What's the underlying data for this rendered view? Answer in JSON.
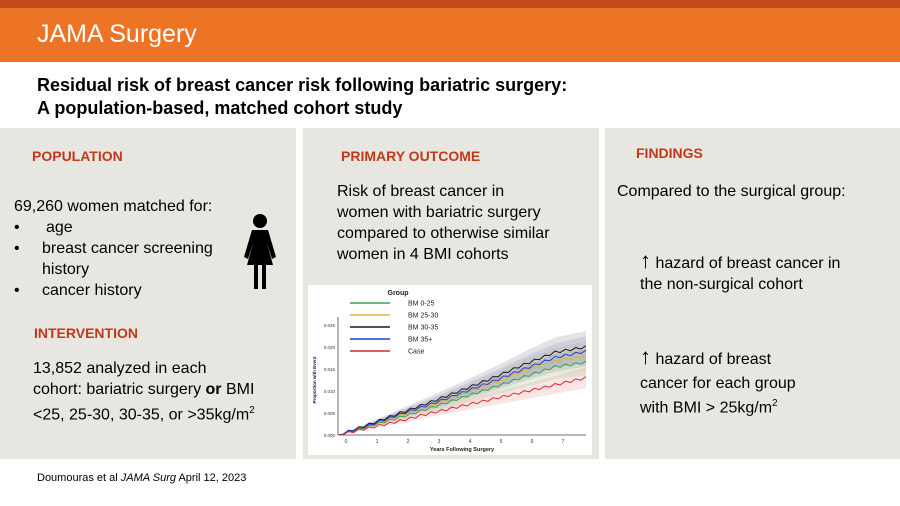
{
  "banner": {
    "journal": "JAMA Surgery"
  },
  "title": {
    "line1": "Residual risk of breast cancer risk following bariatric surgery:",
    "line2": "A population-based, matched cohort study"
  },
  "population": {
    "heading": "POPULATION",
    "intro": "69,260 women matched for:",
    "bullet_char": "•",
    "bullets": [
      "age",
      "breast cancer screening",
      "history",
      "cancer history"
    ]
  },
  "intervention": {
    "heading": "INTERVENTION",
    "line1": "13,852 analyzed in each",
    "line2_pre": "cohort: bariatric surgery ",
    "line2_bold": "or",
    "line2_post": " BMI",
    "line3": "<25, 25-30, 30-35, or >35kg/m",
    "line3_sup": "2"
  },
  "primary_outcome": {
    "heading": "PRIMARY OUTCOME",
    "lines": [
      "Risk of breast cancer in",
      "women with bariatric surgery",
      "compared to otherwise similar",
      "women in 4 BMI cohorts"
    ]
  },
  "findings": {
    "heading": "FINDINGS",
    "intro": "Compared to the surgical group:",
    "arrow": "↑",
    "f1_line1": " hazard of breast cancer in",
    "f1_line2": "the non-surgical cohort",
    "f2_line1": " hazard of breast",
    "f2_line2": "cancer for each group",
    "f2_line3": "with BMI > 25kg/m",
    "f2_sup": "2"
  },
  "citation": {
    "pre": "Doumouras et al ",
    "journal": "JAMA Surg",
    "post": " April 12, 2023"
  },
  "chart_data": {
    "type": "line",
    "title": "",
    "xlabel": "Years Following Surgery",
    "ylabel": "Proportion with Event",
    "legend_title": "Group",
    "legend_position": "top-left",
    "x": [
      0,
      1,
      2,
      3,
      4,
      5,
      6,
      7,
      8
    ],
    "xlim": [
      0,
      8
    ],
    "ylim": [
      0,
      0.025
    ],
    "yticks": [
      "0.000",
      "0.005",
      "0.010",
      "0.015",
      "0.020",
      "0.025"
    ],
    "xticks": [
      "0",
      "1",
      "2",
      "3",
      "4",
      "5",
      "6",
      "7",
      "8"
    ],
    "series": [
      {
        "name": "BM 0-25",
        "color": "#3aa34a",
        "values": [
          0,
          0.002,
          0.004,
          0.0062,
          0.0085,
          0.0108,
          0.0132,
          0.0155,
          0.0165
        ]
      },
      {
        "name": "BM 25-30",
        "color": "#e0b040",
        "values": [
          0,
          0.0022,
          0.0045,
          0.0068,
          0.0092,
          0.0118,
          0.0145,
          0.0168,
          0.018
        ]
      },
      {
        "name": "BM 30-35",
        "color": "#1a1a1a",
        "values": [
          0,
          0.0024,
          0.005,
          0.0075,
          0.0102,
          0.013,
          0.016,
          0.0188,
          0.02
        ]
      },
      {
        "name": "BM 35+",
        "color": "#2840c8",
        "values": [
          0,
          0.0022,
          0.0047,
          0.007,
          0.0096,
          0.0122,
          0.015,
          0.0176,
          0.019
        ]
      },
      {
        "name": "Case",
        "color": "#e02828",
        "values": [
          0,
          0.0016,
          0.0032,
          0.005,
          0.0066,
          0.0082,
          0.0098,
          0.0114,
          0.013
        ]
      }
    ]
  }
}
